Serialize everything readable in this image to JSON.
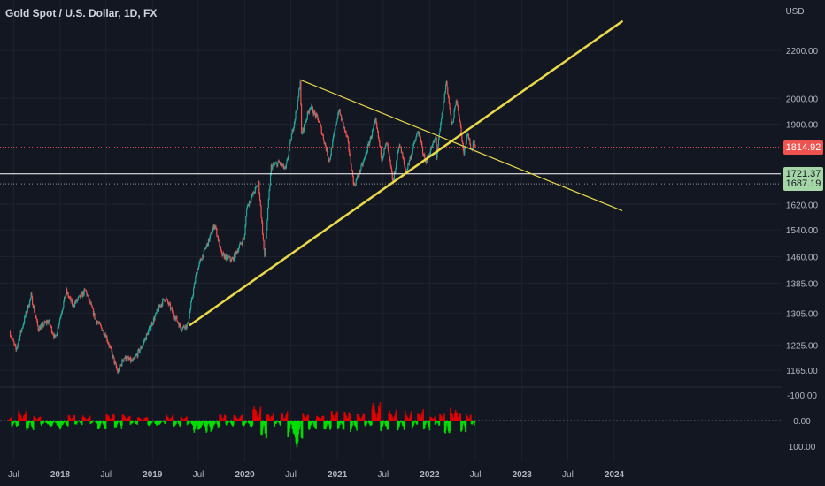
{
  "title": "Gold Spot / U.S. Dollar, 1D, FX",
  "currency_label": "USD",
  "colors": {
    "background": "#131722",
    "grid": "#1e222d",
    "axis_text": "#b2b5be",
    "candle_up": "#26a69a",
    "candle_down": "#ef5350",
    "trendline": "#e8d84a",
    "current_price": "#ef5350",
    "level_up_bg": "#a5d6a7",
    "osc_pos": "#00e000",
    "osc_neg": "#e00000"
  },
  "price_labels": [
    {
      "name": "current-price-label",
      "value": "1814.92",
      "price": 1814.92,
      "bg": "#ef5350",
      "fg": "#ffffff"
    },
    {
      "name": "level-label-1721",
      "value": "1721.37",
      "price": 1721.37,
      "bg": "#a5d6a7",
      "fg": "#131722"
    },
    {
      "name": "level-label-1687",
      "value": "1687.19",
      "price": 1687.19,
      "bg": "#a5d6a7",
      "fg": "#131722"
    }
  ],
  "chart_data": {
    "type": "candlestick",
    "symbol": "Gold Spot / U.S. Dollar",
    "interval": "1D",
    "y_scale": "log",
    "y_ticks": [
      "2200.00",
      "2000.00",
      "1900.00",
      "1620.00",
      "1540.00",
      "1460.00",
      "1385.00",
      "1305.00",
      "1225.00",
      "1165.00"
    ],
    "x_ticks": [
      "Jul",
      "2018",
      "Jul",
      "2019",
      "Jul",
      "2020",
      "Jul",
      "2021",
      "Jul",
      "2022",
      "Jul",
      "2023",
      "Jul",
      "2024"
    ],
    "price_path": [
      [
        "2017-06-15",
        1258
      ],
      [
        "2017-07-10",
        1212
      ],
      [
        "2017-09-08",
        1350
      ],
      [
        "2017-10-06",
        1265
      ],
      [
        "2017-11-15",
        1285
      ],
      [
        "2017-12-12",
        1240
      ],
      [
        "2018-01-25",
        1362
      ],
      [
        "2018-02-20",
        1325
      ],
      [
        "2018-04-11",
        1365
      ],
      [
        "2018-05-20",
        1290
      ],
      [
        "2018-06-30",
        1250
      ],
      [
        "2018-08-16",
        1160
      ],
      [
        "2018-09-10",
        1195
      ],
      [
        "2018-10-15",
        1185
      ],
      [
        "2018-11-20",
        1222
      ],
      [
        "2019-01-31",
        1325
      ],
      [
        "2019-02-20",
        1345
      ],
      [
        "2019-04-23",
        1267
      ],
      [
        "2019-05-20",
        1275
      ],
      [
        "2019-06-25",
        1420
      ],
      [
        "2019-08-10",
        1505
      ],
      [
        "2019-09-04",
        1557
      ],
      [
        "2019-10-01",
        1465
      ],
      [
        "2019-11-12",
        1450
      ],
      [
        "2019-12-31",
        1520
      ],
      [
        "2020-01-08",
        1610
      ],
      [
        "2020-02-24",
        1690
      ],
      [
        "2020-03-19",
        1455
      ],
      [
        "2020-04-14",
        1745
      ],
      [
        "2020-05-15",
        1760
      ],
      [
        "2020-06-10",
        1735
      ],
      [
        "2020-07-28",
        1980
      ],
      [
        "2020-08-07",
        2075
      ],
      [
        "2020-08-12",
        1860
      ],
      [
        "2020-09-15",
        1970
      ],
      [
        "2020-10-20",
        1910
      ],
      [
        "2020-11-30",
        1765
      ],
      [
        "2021-01-06",
        1955
      ],
      [
        "2021-02-10",
        1840
      ],
      [
        "2021-03-08",
        1680
      ],
      [
        "2021-04-15",
        1765
      ],
      [
        "2021-06-01",
        1910
      ],
      [
        "2021-06-25",
        1775
      ],
      [
        "2021-07-15",
        1830
      ],
      [
        "2021-08-09",
        1690
      ],
      [
        "2021-09-03",
        1830
      ],
      [
        "2021-09-29",
        1725
      ],
      [
        "2021-11-16",
        1875
      ],
      [
        "2021-12-15",
        1760
      ],
      [
        "2022-01-25",
        1850
      ],
      [
        "2022-01-28",
        1780
      ],
      [
        "2022-02-24",
        1975
      ],
      [
        "2022-03-08",
        2070
      ],
      [
        "2022-03-29",
        1890
      ],
      [
        "2022-04-18",
        1998
      ],
      [
        "2022-05-16",
        1788
      ],
      [
        "2022-05-30",
        1870
      ],
      [
        "2022-06-14",
        1805
      ],
      [
        "2022-06-24",
        1830
      ],
      [
        "2022-06-30",
        1808
      ]
    ],
    "trendlines": [
      {
        "name": "rising-support",
        "from": [
          "2019-05-30",
          1275
        ],
        "to": [
          "2024-01-31",
          2330
        ],
        "width": 2.5
      },
      {
        "name": "falling-resistance",
        "from": [
          "2020-08-07",
          2075
        ],
        "to": [
          "2024-01-31",
          1600
        ],
        "width": 1.2
      }
    ],
    "horizontal_levels": [
      {
        "name": "current-price-line",
        "price": 1814.92,
        "style": "dotted"
      },
      {
        "name": "level-1721",
        "price": 1721.37,
        "style": "solid"
      },
      {
        "name": "level-1687",
        "price": 1687.19,
        "style": "dotted"
      }
    ],
    "oscillator": {
      "y_ticks": [
        "-100.00",
        "0.00",
        "100.00"
      ],
      "y_range": [
        -100,
        100
      ],
      "axis_inverted": true,
      "peaks": [
        [
          "2017-06-10",
          -15
        ],
        [
          "2017-07-05",
          35
        ],
        [
          "2017-08-05",
          -40
        ],
        [
          "2017-09-05",
          45
        ],
        [
          "2017-10-01",
          -20
        ],
        [
          "2017-11-01",
          25
        ],
        [
          "2017-12-10",
          30
        ],
        [
          "2018-01-20",
          35
        ],
        [
          "2018-02-15",
          -25
        ],
        [
          "2018-03-15",
          20
        ],
        [
          "2018-04-15",
          -20
        ],
        [
          "2018-05-15",
          15
        ],
        [
          "2018-06-15",
          35
        ],
        [
          "2018-07-20",
          -30
        ],
        [
          "2018-08-20",
          35
        ],
        [
          "2018-09-20",
          -25
        ],
        [
          "2018-10-20",
          20
        ],
        [
          "2018-11-20",
          -15
        ],
        [
          "2019-01-05",
          25
        ],
        [
          "2019-02-10",
          20
        ],
        [
          "2019-03-10",
          -25
        ],
        [
          "2019-04-10",
          30
        ],
        [
          "2019-05-05",
          -20
        ],
        [
          "2019-05-30",
          25
        ],
        [
          "2019-06-25",
          55
        ],
        [
          "2019-07-20",
          40
        ],
        [
          "2019-08-10",
          60
        ],
        [
          "2019-09-10",
          35
        ],
        [
          "2019-10-05",
          -30
        ],
        [
          "2019-11-01",
          25
        ],
        [
          "2019-12-05",
          -25
        ],
        [
          "2020-01-10",
          30
        ],
        [
          "2020-02-25",
          -60
        ],
        [
          "2020-03-15",
          80
        ],
        [
          "2020-04-10",
          -35
        ],
        [
          "2020-05-10",
          25
        ],
        [
          "2020-06-05",
          -40
        ],
        [
          "2020-07-01",
          75
        ],
        [
          "2020-08-08",
          115
        ],
        [
          "2020-08-25",
          -35
        ],
        [
          "2020-09-25",
          40
        ],
        [
          "2020-10-25",
          -25
        ],
        [
          "2020-11-25",
          45
        ],
        [
          "2020-12-20",
          -45
        ],
        [
          "2021-01-15",
          40
        ],
        [
          "2021-02-10",
          -50
        ],
        [
          "2021-03-05",
          45
        ],
        [
          "2021-04-05",
          -35
        ],
        [
          "2021-05-01",
          30
        ],
        [
          "2021-06-05",
          -80
        ],
        [
          "2021-07-05",
          50
        ],
        [
          "2021-08-10",
          -45
        ],
        [
          "2021-09-10",
          40
        ],
        [
          "2021-10-10",
          -40
        ],
        [
          "2021-11-05",
          30
        ],
        [
          "2021-11-25",
          -50
        ],
        [
          "2021-12-20",
          40
        ],
        [
          "2022-01-15",
          -20
        ],
        [
          "2022-01-30",
          25
        ],
        [
          "2022-02-20",
          -40
        ],
        [
          "2022-03-10",
          65
        ],
        [
          "2022-04-05",
          -55
        ],
        [
          "2022-04-25",
          -40
        ],
        [
          "2022-05-15",
          50
        ],
        [
          "2022-06-05",
          -30
        ],
        [
          "2022-06-25",
          25
        ],
        [
          "2022-06-30",
          20
        ]
      ]
    }
  }
}
